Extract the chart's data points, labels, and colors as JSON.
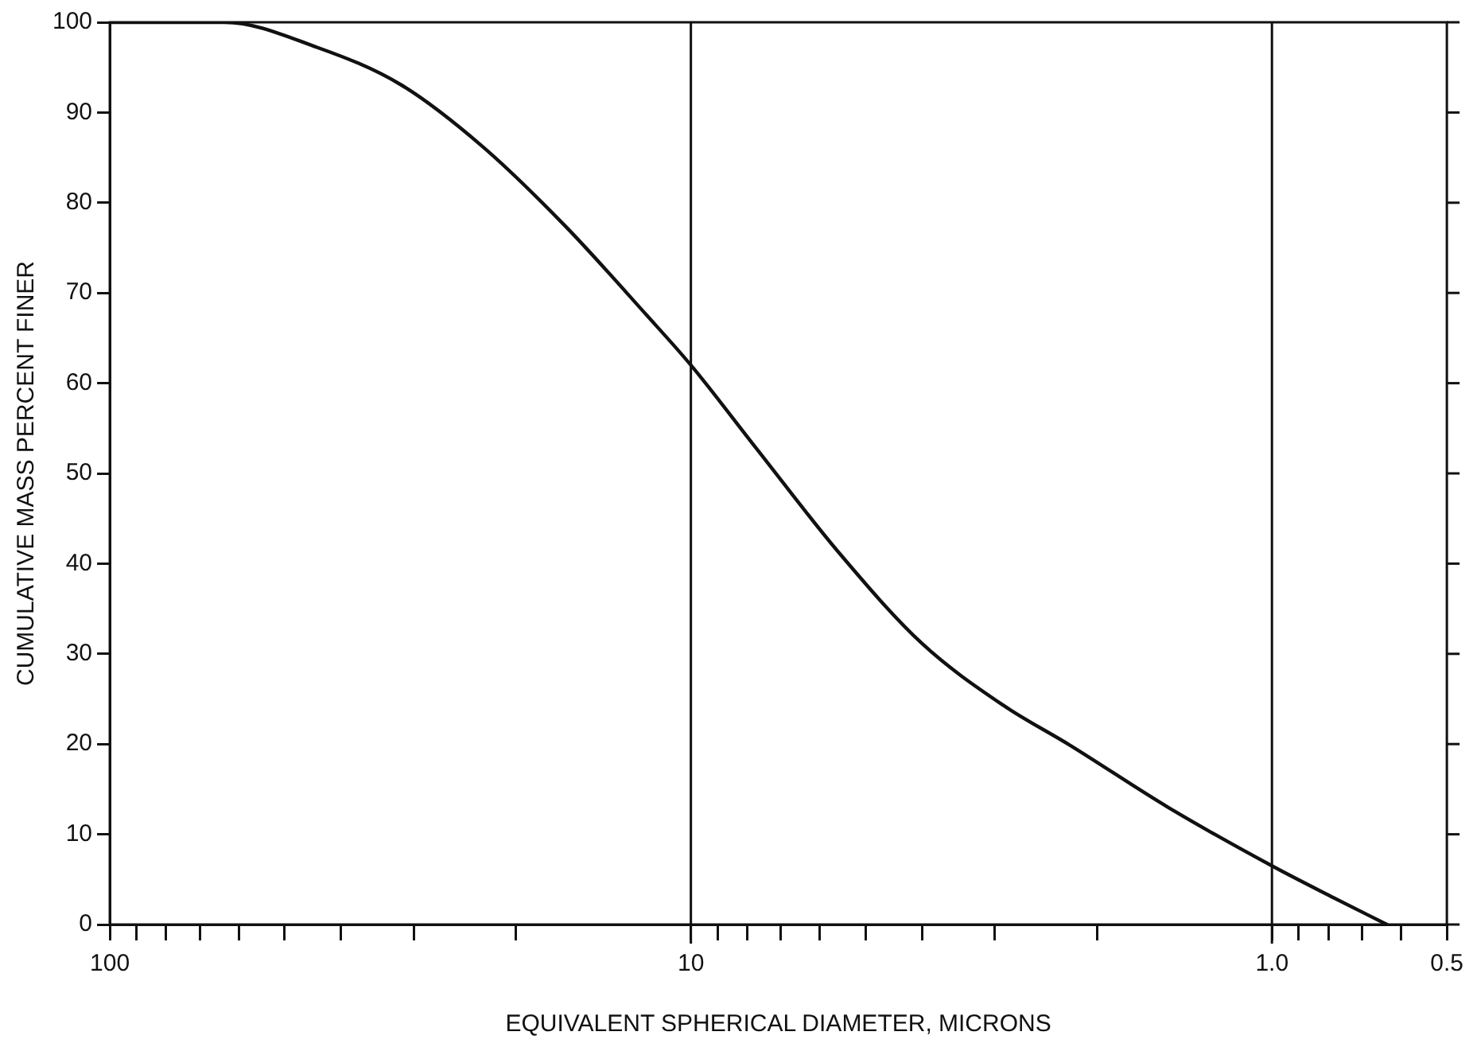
{
  "chart_data": {
    "type": "line",
    "xlabel": "EQUIVALENT SPHERICAL DIAMETER, MICRONS",
    "ylabel": "CUMULATIVE MASS PERCENT FINER",
    "series": [
      {
        "color": "#111111",
        "x": [
          100,
          63.5,
          43.9,
          31.6,
          22.9,
          16.5,
          11.9,
          10,
          7.7,
          5.56,
          4.01,
          2.9,
          2.23,
          1.51,
          1.0,
          0.785,
          0.634
        ],
        "values": [
          100,
          100,
          97.2,
          93.1,
          86.3,
          77.5,
          67.5,
          62,
          52.7,
          41.2,
          31.2,
          24.3,
          19.9,
          13,
          6.5,
          3,
          0
        ]
      }
    ],
    "log": "x",
    "xlim": [
      100,
      0.5
    ],
    "xticks": [
      100,
      {
        "value": 90,
        "label": null
      },
      {
        "value": 80,
        "label": null
      },
      {
        "value": 70,
        "label": null
      },
      {
        "value": 60,
        "label": null
      },
      {
        "value": 50,
        "label": null
      },
      {
        "value": 40,
        "label": null
      },
      {
        "value": 30,
        "label": null
      },
      {
        "value": 20,
        "label": null
      },
      10,
      {
        "value": 9,
        "label": null
      },
      {
        "value": 8,
        "label": null
      },
      {
        "value": 7,
        "label": null
      },
      {
        "value": 6,
        "label": null
      },
      {
        "value": 5,
        "label": null
      },
      {
        "value": 4,
        "label": null
      },
      {
        "value": 3,
        "label": null
      },
      {
        "value": 2,
        "label": null
      },
      {
        "value": 1,
        "label": "1.0"
      },
      {
        "value": 0.9,
        "label": null
      },
      {
        "value": 0.8,
        "label": null
      },
      {
        "value": 0.7,
        "label": null
      },
      {
        "value": 0.6,
        "label": null
      },
      0.5
    ],
    "ylim": [
      0,
      100
    ],
    "yticks": [
      0,
      10,
      20,
      30,
      40,
      50,
      60,
      70,
      80,
      90,
      100
    ],
    "ref_lines": [
      {
        "axis": "x",
        "value": 10
      },
      {
        "axis": "x",
        "value": 1
      }
    ],
    "grid": false,
    "legend": false,
    "marker": "none",
    "line_style": "solid"
  }
}
